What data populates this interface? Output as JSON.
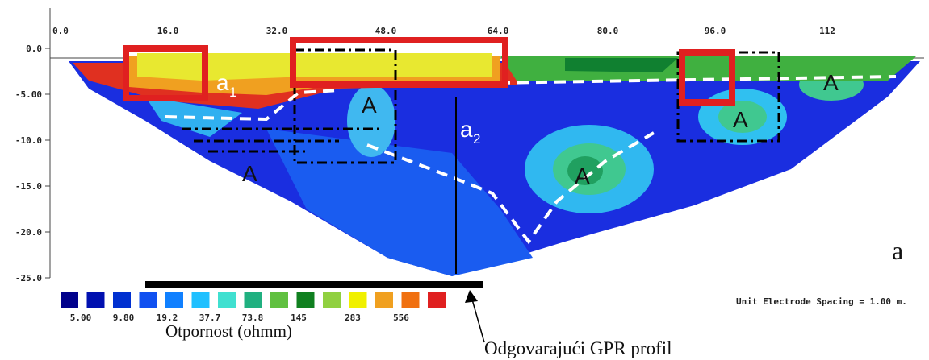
{
  "x_axis": {
    "labels": [
      "0.0",
      "16.0",
      "32.0",
      "48.0",
      "64.0",
      "80.0",
      "96.0",
      "112"
    ]
  },
  "y_axis": {
    "labels": [
      "0.0",
      "-5.00",
      "-10.0",
      "-15.0",
      "-20.0",
      "-25.0"
    ]
  },
  "legend": {
    "labels": [
      "5.00",
      "9.80",
      "19.2",
      "37.7",
      "73.8",
      "145",
      "283",
      "556"
    ],
    "title": "Otpornost (ohmm)"
  },
  "annotations": {
    "a1": {
      "base": "a",
      "sub": "1"
    },
    "a2": {
      "base": "a",
      "sub": "2"
    },
    "A": [
      "A",
      "A",
      "A",
      "A",
      "A"
    ]
  },
  "gpr_label": "Odgovarajući GPR profil",
  "spacing_note": "Unit Electrode Spacing = 1.00 m.",
  "panel_label": "a"
}
